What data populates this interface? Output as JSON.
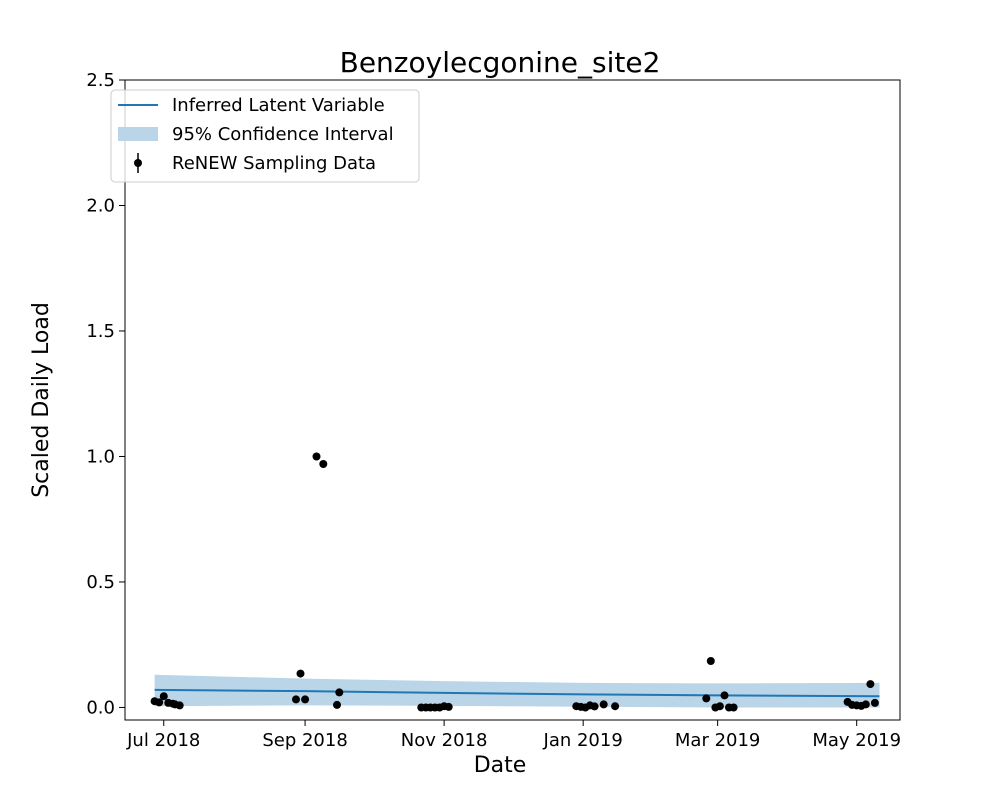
{
  "chart_data": {
    "type": "line",
    "title": "Benzoylecgonine_site2",
    "xlabel": "Date",
    "ylabel": "Scaled Daily Load",
    "x_axis": {
      "start": "2018-06-14",
      "end": "2019-05-20",
      "ticks": [
        {
          "date": "2018-07-01",
          "label": "Jul 2018"
        },
        {
          "date": "2018-09-01",
          "label": "Sep 2018"
        },
        {
          "date": "2018-11-01",
          "label": "Nov 2018"
        },
        {
          "date": "2019-01-01",
          "label": "Jan 2019"
        },
        {
          "date": "2019-03-01",
          "label": "Mar 2019"
        },
        {
          "date": "2019-05-01",
          "label": "May 2019"
        }
      ]
    },
    "y_axis": {
      "ylim": [
        -0.05,
        2.5
      ],
      "ticks": [
        {
          "value": 0.0,
          "label": "0.0"
        },
        {
          "value": 0.5,
          "label": "0.5"
        },
        {
          "value": 1.0,
          "label": "1.0"
        },
        {
          "value": 1.5,
          "label": "1.5"
        },
        {
          "value": 2.0,
          "label": "2.0"
        },
        {
          "value": 2.5,
          "label": "2.5"
        }
      ]
    },
    "grid": false,
    "legend": {
      "placement": "top-left",
      "entries": [
        {
          "label": "Inferred Latent Variable",
          "kind": "line"
        },
        {
          "label": "95% Confidence Interval",
          "kind": "band"
        },
        {
          "label": "ReNEW Sampling Data",
          "kind": "marker"
        }
      ]
    },
    "colors": {
      "latent": "#1f77b4",
      "band": "#bad5e8",
      "points": "#000000",
      "axes": "#000000"
    },
    "latent_variable": {
      "x": [
        "2018-06-27",
        "2018-09-01",
        "2018-11-01",
        "2019-01-01",
        "2019-03-01",
        "2019-05-11"
      ],
      "y": [
        0.07,
        0.065,
        0.058,
        0.052,
        0.048,
        0.045
      ]
    },
    "confidence_interval": {
      "x": [
        "2018-06-27",
        "2018-09-01",
        "2018-11-01",
        "2019-01-01",
        "2019-03-01",
        "2019-05-11"
      ],
      "lower": [
        0.005,
        0.008,
        0.006,
        0.003,
        0.0,
        0.0
      ],
      "upper": [
        0.13,
        0.115,
        0.105,
        0.098,
        0.096,
        0.098
      ]
    },
    "sampling_data": {
      "x": [
        "2018-06-27",
        "2018-06-29",
        "2018-07-01",
        "2018-07-03",
        "2018-07-05",
        "2018-07-06",
        "2018-07-08",
        "2018-08-28",
        "2018-08-30",
        "2018-09-01",
        "2018-09-06",
        "2018-09-09",
        "2018-09-15",
        "2018-09-16",
        "2018-10-22",
        "2018-10-24",
        "2018-10-26",
        "2018-10-28",
        "2018-10-30",
        "2018-11-01",
        "2018-11-03",
        "2018-12-29",
        "2018-12-31",
        "2019-01-02",
        "2019-01-04",
        "2019-01-06",
        "2019-01-10",
        "2019-01-15",
        "2019-02-24",
        "2019-02-26",
        "2019-02-28",
        "2019-03-02",
        "2019-03-04",
        "2019-03-06",
        "2019-03-08",
        "2019-04-27",
        "2019-04-29",
        "2019-05-01",
        "2019-05-03",
        "2019-05-05",
        "2019-05-07",
        "2019-05-09"
      ],
      "y": [
        0.025,
        0.02,
        0.045,
        0.018,
        0.015,
        0.012,
        0.008,
        0.032,
        0.135,
        0.032,
        1.0,
        0.97,
        0.01,
        0.06,
        0.0,
        0.0,
        0.0,
        0.0,
        0.0,
        0.005,
        0.002,
        0.005,
        0.002,
        0.0,
        0.008,
        0.004,
        0.012,
        0.005,
        0.036,
        0.185,
        0.0,
        0.005,
        0.048,
        0.0,
        0.0,
        0.022,
        0.01,
        0.008,
        0.006,
        0.012,
        0.093,
        0.018
      ]
    }
  }
}
